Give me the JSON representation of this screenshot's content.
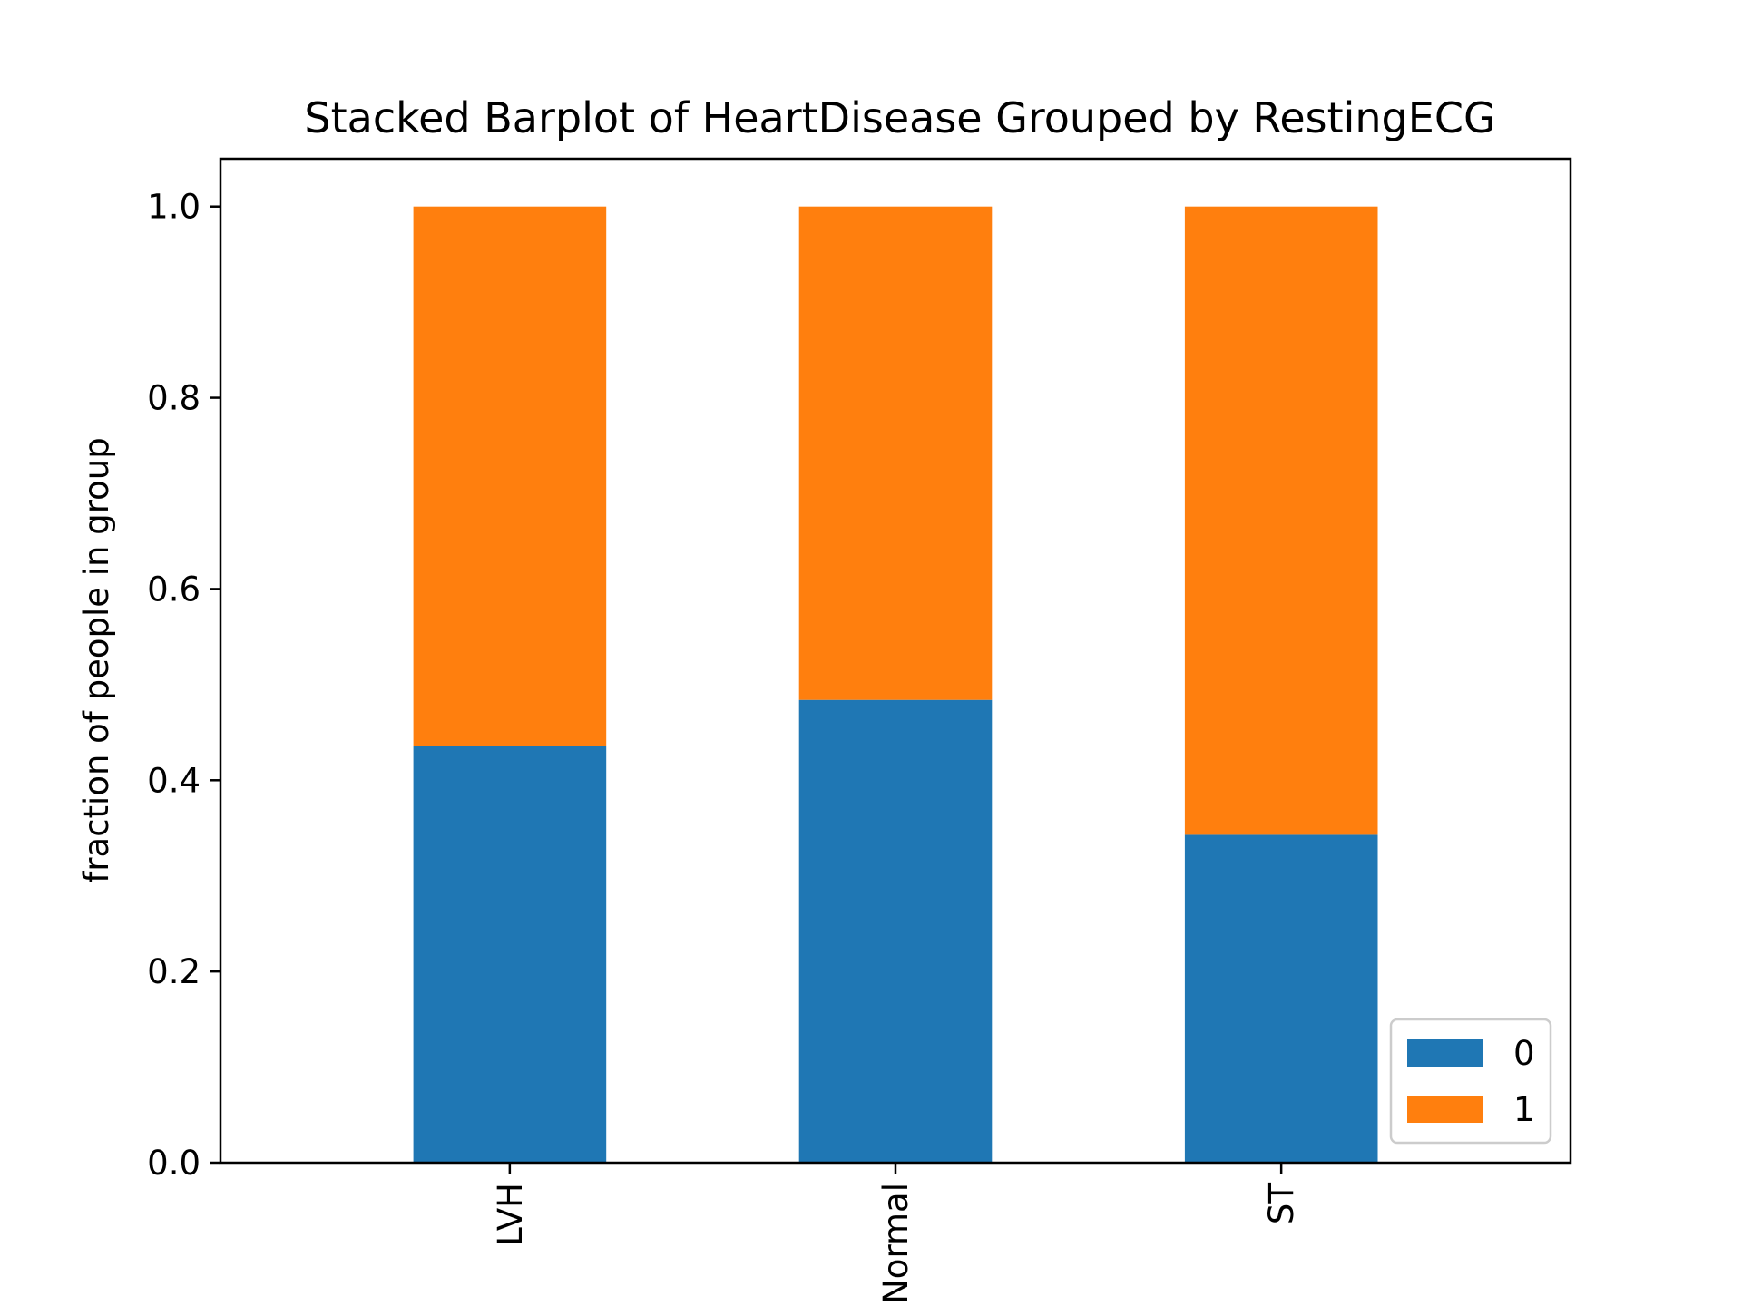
{
  "chart_data": {
    "type": "bar",
    "stacked": true,
    "title": "Stacked Barplot of HeartDisease Grouped by RestingECG",
    "xlabel": "",
    "ylabel": "fraction of people in group",
    "categories": [
      "LVH",
      "Normal",
      "ST"
    ],
    "series": [
      {
        "name": "0",
        "color": "#1f77b4",
        "values": [
          0.436,
          0.484,
          0.343
        ]
      },
      {
        "name": "1",
        "color": "#ff7f0e",
        "values": [
          0.564,
          0.516,
          0.657
        ]
      }
    ],
    "ylim": [
      0,
      1.05
    ],
    "yticks": [
      "0.0",
      "0.2",
      "0.4",
      "0.6",
      "0.8",
      "1.0"
    ],
    "grid": false,
    "legend_position": "lower-right",
    "x_tick_rotation": "vertical"
  }
}
